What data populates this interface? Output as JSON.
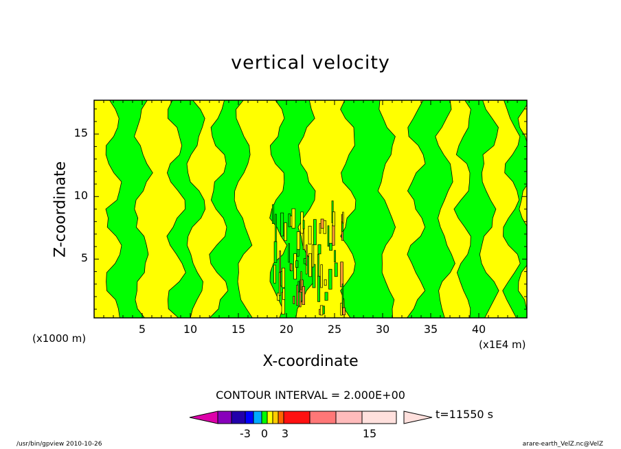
{
  "colors": {
    "green": "#00ff00",
    "yellow": "#ffff00",
    "orange": "#ff9933",
    "dark": "#000000"
  },
  "footer": {
    "left": "/usr/bin/gpview   2010-10-26",
    "right": "arare-earth_VelZ.nc@VelZ"
  },
  "colorbar": {
    "contour_interval": "CONTOUR INTERVAL = 2.000E+00",
    "time": "t=11550  s",
    "levels": [
      "-3",
      "0",
      "3",
      "15"
    ],
    "colors": [
      "#dd00aa",
      "#8800bb",
      "#2200aa",
      "#0000ff",
      "#00aaff",
      "#00ff00",
      "#ffff00",
      "#ffcc00",
      "#ff6600",
      "#ff1111",
      "#ff7777",
      "#ffbbbb",
      "#ffe0dd"
    ]
  },
  "chart_data": {
    "type": "heatmap",
    "title": "vertical velocity",
    "xlabel": "X-coordinate",
    "ylabel": "Z-coordinate",
    "x_unit_left": "(x1000 m)",
    "x_unit_right": "(x1E4 m)",
    "x_ticks": [
      "5",
      "10",
      "15",
      "20",
      "25",
      "30",
      "35",
      "40"
    ],
    "y_ticks": [
      "5",
      "10",
      "15"
    ],
    "x_tick_values": [
      5,
      10,
      15,
      20,
      25,
      30,
      35,
      40
    ],
    "y_tick_values": [
      5,
      10,
      15
    ],
    "xlim": [
      0,
      45
    ],
    "ylim": [
      0.3,
      17.7
    ],
    "grid": false,
    "field_description": "Alternating vertical bands of weak negative (green) and weak positive (yellow) vertical velocity; strong small-scale up/down drafts concentrated near x = 19–25 below z = 8.",
    "bands": [
      {
        "x_from": 0.0,
        "x_to": 2.0,
        "sign": "positive"
      },
      {
        "x_from": 2.0,
        "x_to": 5.0,
        "sign": "negative"
      },
      {
        "x_from": 5.0,
        "x_to": 8.5,
        "sign": "positive"
      },
      {
        "x_from": 8.5,
        "x_to": 10.5,
        "sign": "negative"
      },
      {
        "x_from": 10.5,
        "x_to": 13.0,
        "sign": "positive"
      },
      {
        "x_from": 13.0,
        "x_to": 15.5,
        "sign": "negative"
      },
      {
        "x_from": 15.5,
        "x_to": 19.0,
        "sign": "positive"
      },
      {
        "x_from": 19.0,
        "x_to": 22.0,
        "sign": "negative"
      },
      {
        "x_from": 22.0,
        "x_to": 26.5,
        "sign": "positive"
      },
      {
        "x_from": 26.5,
        "x_to": 30.5,
        "sign": "negative"
      },
      {
        "x_from": 30.5,
        "x_to": 33.5,
        "sign": "positive"
      },
      {
        "x_from": 33.5,
        "x_to": 36.5,
        "sign": "negative"
      },
      {
        "x_from": 36.5,
        "x_to": 38.5,
        "sign": "positive"
      },
      {
        "x_from": 38.5,
        "x_to": 41.0,
        "sign": "negative"
      },
      {
        "x_from": 41.0,
        "x_to": 43.5,
        "sign": "positive"
      },
      {
        "x_from": 43.5,
        "x_to": 45.0,
        "sign": "negative"
      }
    ]
  }
}
